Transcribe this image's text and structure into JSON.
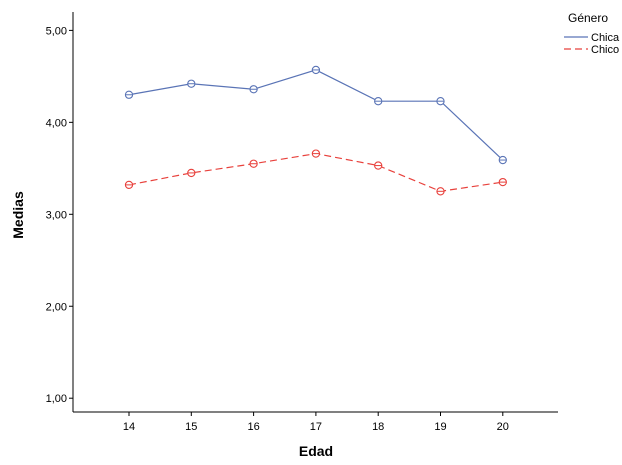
{
  "chart_data": {
    "type": "line",
    "title": "",
    "xlabel": "Edad",
    "ylabel": "Medias",
    "categories": [
      "14",
      "15",
      "16",
      "17",
      "18",
      "19",
      "20"
    ],
    "y_ticks": [
      "1,00",
      "2,00",
      "3,00",
      "4,00",
      "5,00"
    ],
    "ylim": [
      0.85,
      5.2
    ],
    "grid": false,
    "legend": {
      "title": "Género",
      "position": "top-right"
    },
    "series": [
      {
        "name": "Chica",
        "color": "#5a74b6",
        "style": "solid",
        "marker": "circle",
        "values": [
          4.3,
          4.42,
          4.36,
          4.57,
          4.23,
          4.23,
          3.59
        ]
      },
      {
        "name": "Chico",
        "color": "#e8413c",
        "style": "dashed",
        "marker": "circle",
        "values": [
          3.32,
          3.45,
          3.55,
          3.66,
          3.53,
          3.25,
          3.35
        ]
      }
    ]
  }
}
